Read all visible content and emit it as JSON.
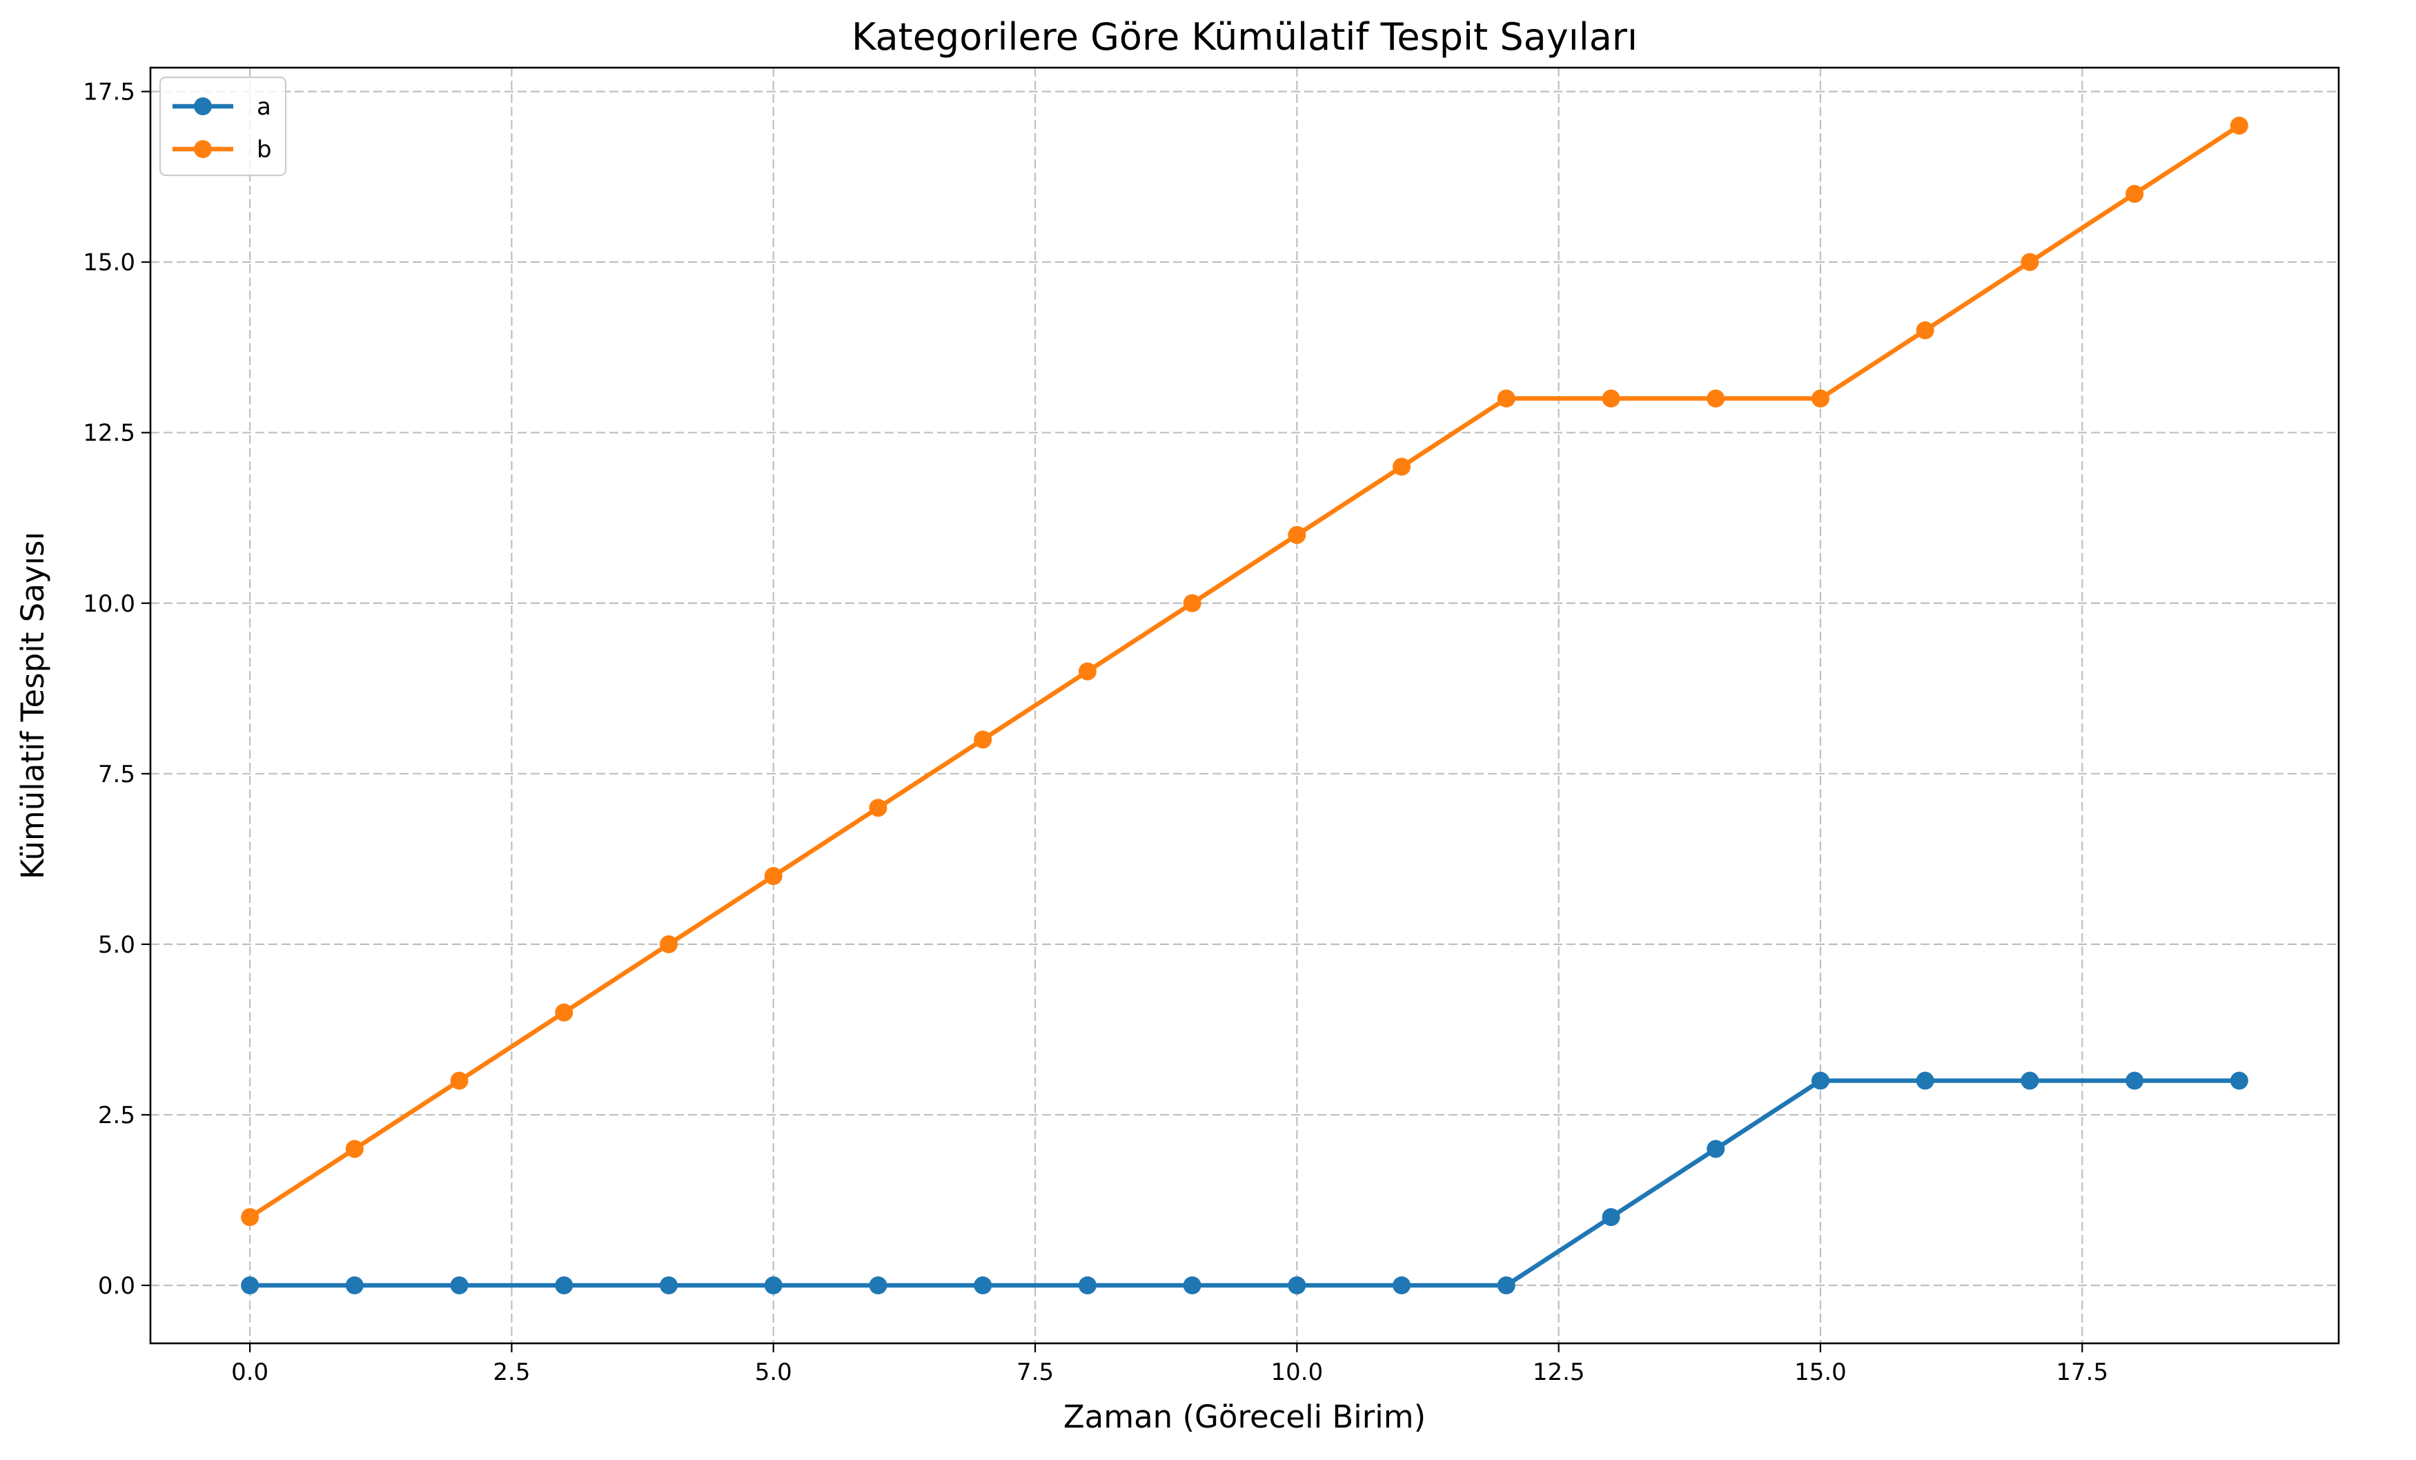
{
  "chart_data": {
    "type": "line",
    "title": "Kategorilere Göre Kümülatif Tespit Sayıları",
    "xlabel": "Zaman (Göreceli Birim)",
    "ylabel": "Kümülatif Tespit Sayısı",
    "xlim": [
      -0.95,
      19.95
    ],
    "ylim": [
      -0.85,
      17.85
    ],
    "x_ticks": [
      0.0,
      2.5,
      5.0,
      7.5,
      10.0,
      12.5,
      15.0,
      17.5
    ],
    "x_tick_labels": [
      "0.0",
      "2.5",
      "5.0",
      "7.5",
      "10.0",
      "12.5",
      "15.0",
      "17.5"
    ],
    "y_ticks": [
      0.0,
      2.5,
      5.0,
      7.5,
      10.0,
      12.5,
      15.0,
      17.5
    ],
    "y_tick_labels": [
      "0.0",
      "2.5",
      "5.0",
      "7.5",
      "10.0",
      "12.5",
      "15.0",
      "17.5"
    ],
    "grid": true,
    "legend_position": "top-left",
    "x": [
      0,
      1,
      2,
      3,
      4,
      5,
      6,
      7,
      8,
      9,
      10,
      11,
      12,
      13,
      14,
      15,
      16,
      17,
      18,
      19
    ],
    "series": [
      {
        "name": "a",
        "color": "#1f77b4",
        "values": [
          0,
          0,
          0,
          0,
          0,
          0,
          0,
          0,
          0,
          0,
          0,
          0,
          0,
          1,
          2,
          3,
          3,
          3,
          3,
          3
        ]
      },
      {
        "name": "b",
        "color": "#ff7f0e",
        "values": [
          1,
          2,
          3,
          4,
          5,
          6,
          7,
          8,
          9,
          10,
          11,
          12,
          13,
          13,
          13,
          13,
          14,
          15,
          16,
          17
        ]
      }
    ]
  }
}
